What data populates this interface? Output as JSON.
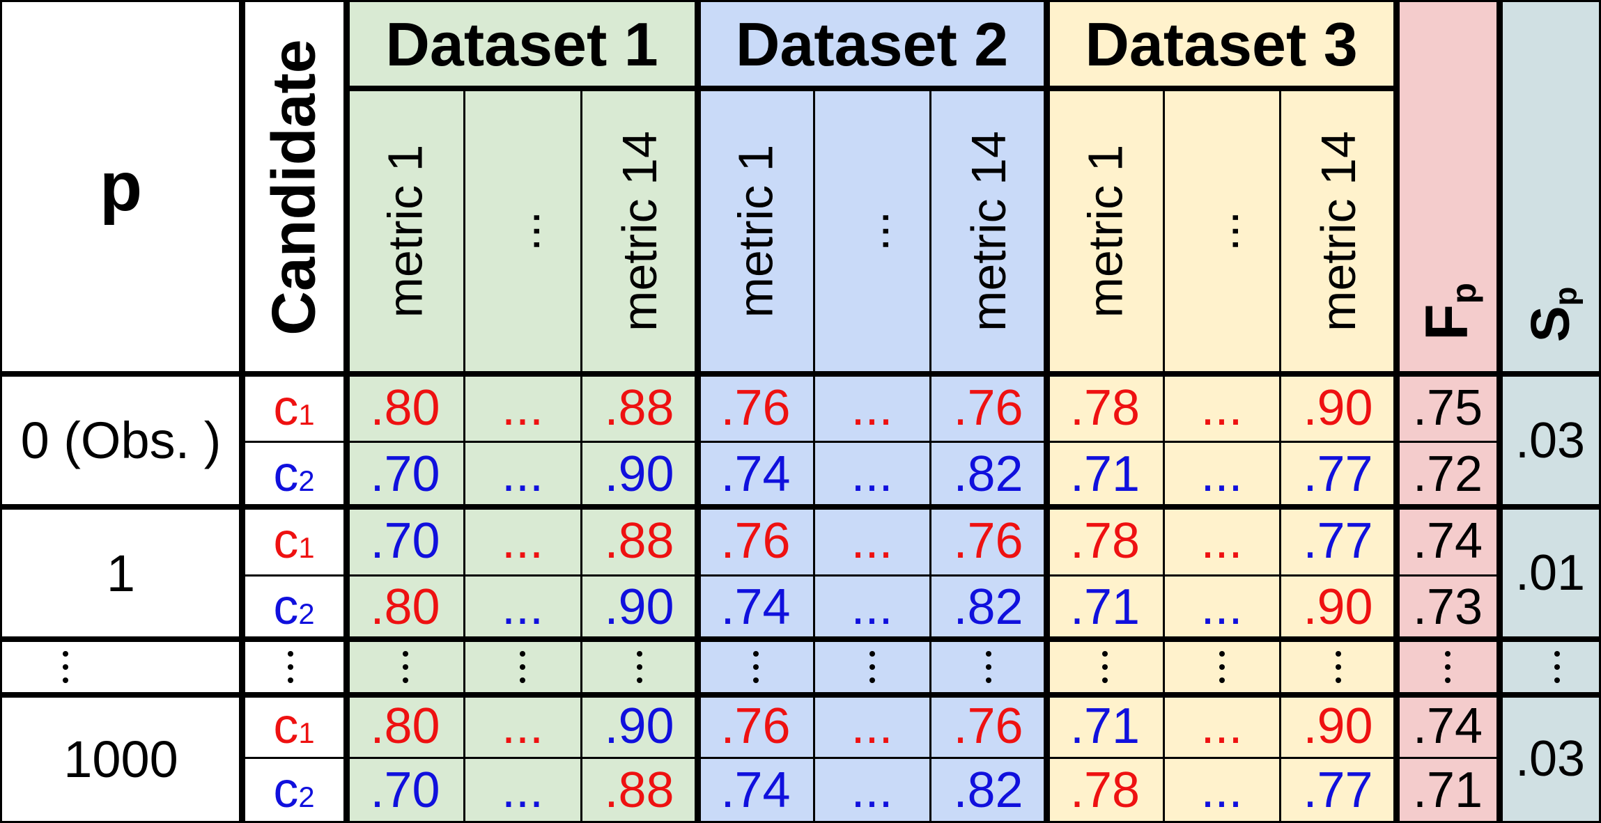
{
  "header": {
    "p_label": "p",
    "candidate_label": "Candidate",
    "f_label": "F",
    "f_sub": "p",
    "s_label": "S",
    "s_sub": "p"
  },
  "datasets": [
    {
      "name": "Dataset 1",
      "metrics": [
        "metric 1",
        "...",
        "metric 14"
      ]
    },
    {
      "name": "Dataset 2",
      "metrics": [
        "metric 1",
        "...",
        "metric 14"
      ]
    },
    {
      "name": "Dataset 3",
      "metrics": [
        "metric 1",
        "...",
        "metric 14"
      ]
    }
  ],
  "colors": {
    "dataset_1": "#d9ead3",
    "dataset_2": "#c9daf8",
    "dataset_3": "#fff2cc",
    "f_column": "#f4cccc",
    "s_column": "#d0e0e3",
    "red": "#ee1111",
    "blue": "#1010dd"
  },
  "groups": [
    {
      "p": "0 (Obs. )",
      "s": ".03",
      "rows": [
        {
          "cand": "c",
          "cand_sub": "1",
          "cand_color": "red",
          "cells": [
            {
              "t": ".80",
              "c": "red"
            },
            {
              "t": "...",
              "c": "red"
            },
            {
              "t": ".88",
              "c": "red"
            },
            {
              "t": ".76",
              "c": "red"
            },
            {
              "t": "...",
              "c": "red"
            },
            {
              "t": ".76",
              "c": "red"
            },
            {
              "t": ".78",
              "c": "red"
            },
            {
              "t": "...",
              "c": "red"
            },
            {
              "t": ".90",
              "c": "red"
            }
          ],
          "f": ".75"
        },
        {
          "cand": "c",
          "cand_sub": "2",
          "cand_color": "blue",
          "cells": [
            {
              "t": ".70",
              "c": "blue"
            },
            {
              "t": "...",
              "c": "blue"
            },
            {
              "t": ".90",
              "c": "blue"
            },
            {
              "t": ".74",
              "c": "blue"
            },
            {
              "t": "...",
              "c": "blue"
            },
            {
              "t": ".82",
              "c": "blue"
            },
            {
              "t": ".71",
              "c": "blue"
            },
            {
              "t": "...",
              "c": "blue"
            },
            {
              "t": ".77",
              "c": "blue"
            }
          ],
          "f": ".72"
        }
      ]
    },
    {
      "p": "1",
      "s": ".01",
      "rows": [
        {
          "cand": "c",
          "cand_sub": "1",
          "cand_color": "red",
          "cells": [
            {
              "t": ".70",
              "c": "blue"
            },
            {
              "t": "...",
              "c": "red"
            },
            {
              "t": ".88",
              "c": "red"
            },
            {
              "t": ".76",
              "c": "red"
            },
            {
              "t": "...",
              "c": "red"
            },
            {
              "t": ".76",
              "c": "red"
            },
            {
              "t": ".78",
              "c": "red"
            },
            {
              "t": "...",
              "c": "red"
            },
            {
              "t": ".77",
              "c": "blue"
            }
          ],
          "f": ".74"
        },
        {
          "cand": "c",
          "cand_sub": "2",
          "cand_color": "blue",
          "cells": [
            {
              "t": ".80",
              "c": "red"
            },
            {
              "t": "...",
              "c": "blue"
            },
            {
              "t": ".90",
              "c": "blue"
            },
            {
              "t": ".74",
              "c": "blue"
            },
            {
              "t": "...",
              "c": "blue"
            },
            {
              "t": ".82",
              "c": "blue"
            },
            {
              "t": ".71",
              "c": "blue"
            },
            {
              "t": "...",
              "c": "blue"
            },
            {
              "t": ".90",
              "c": "red"
            }
          ],
          "f": ".73"
        }
      ]
    },
    {
      "p": "1000",
      "s": ".03",
      "rows": [
        {
          "cand": "c",
          "cand_sub": "1",
          "cand_color": "red",
          "cells": [
            {
              "t": ".80",
              "c": "red"
            },
            {
              "t": "...",
              "c": "red"
            },
            {
              "t": ".90",
              "c": "blue"
            },
            {
              "t": ".76",
              "c": "red"
            },
            {
              "t": "...",
              "c": "red"
            },
            {
              "t": ".76",
              "c": "red"
            },
            {
              "t": ".71",
              "c": "blue"
            },
            {
              "t": "...",
              "c": "red"
            },
            {
              "t": ".90",
              "c": "red"
            }
          ],
          "f": ".74"
        },
        {
          "cand": "c",
          "cand_sub": "2",
          "cand_color": "blue",
          "cells": [
            {
              "t": ".70",
              "c": "blue"
            },
            {
              "t": "...",
              "c": "blue"
            },
            {
              "t": ".88",
              "c": "red"
            },
            {
              "t": ".74",
              "c": "blue"
            },
            {
              "t": "...",
              "c": "blue"
            },
            {
              "t": ".82",
              "c": "blue"
            },
            {
              "t": ".78",
              "c": "red"
            },
            {
              "t": "...",
              "c": "blue"
            },
            {
              "t": ".77",
              "c": "blue"
            }
          ],
          "f": ".71"
        }
      ]
    }
  ]
}
